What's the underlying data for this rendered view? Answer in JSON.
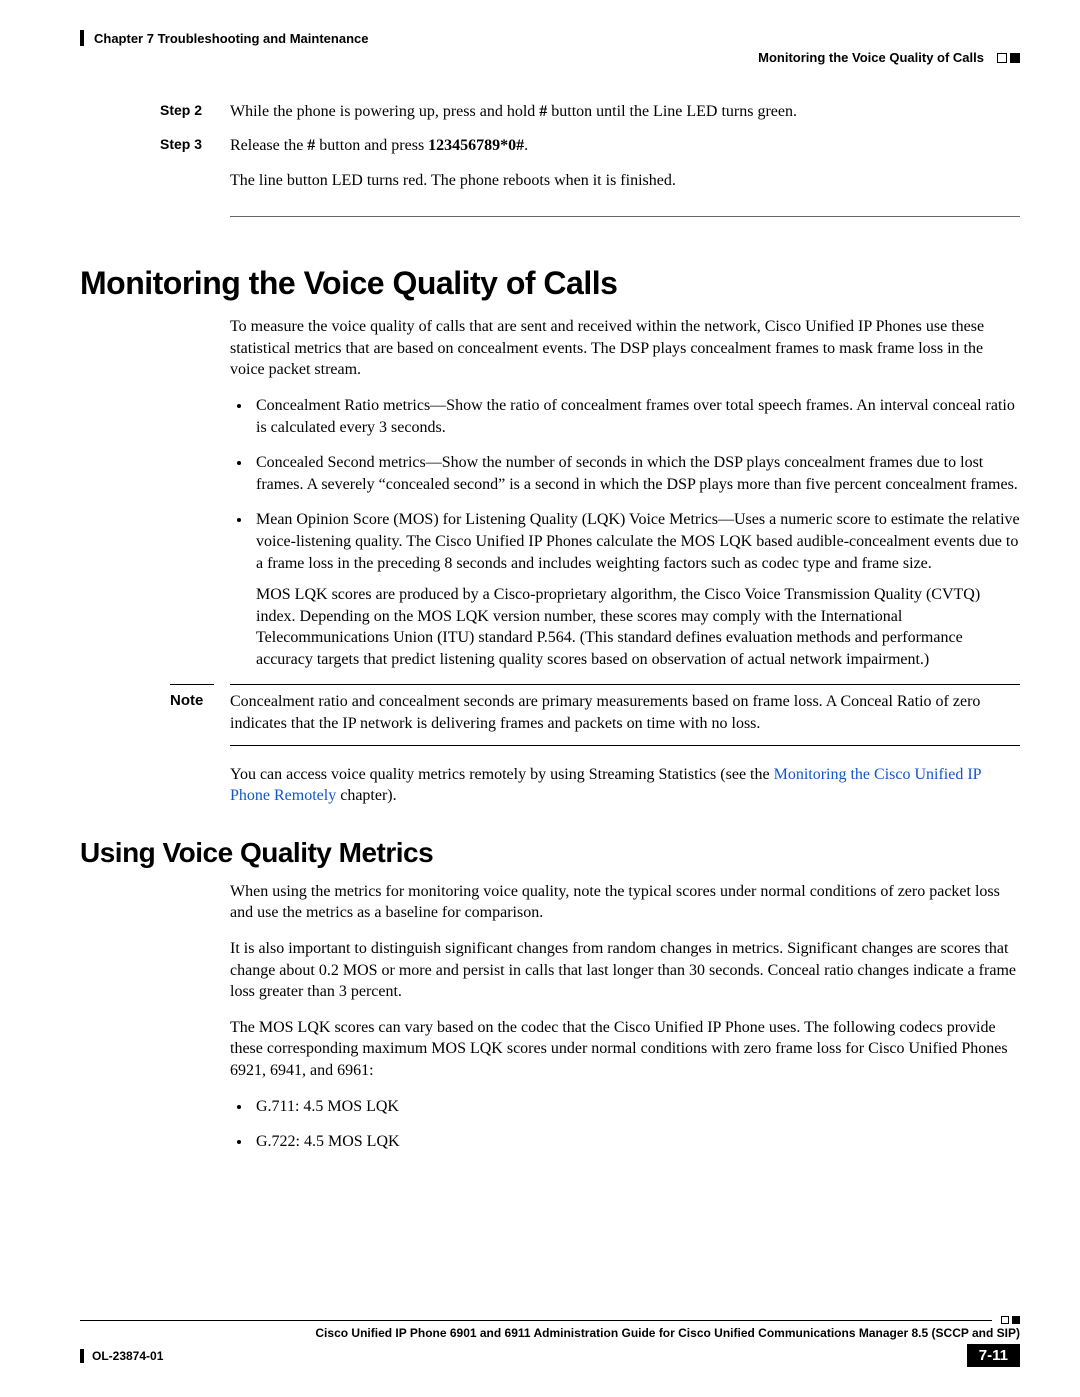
{
  "header": {
    "chapter": "Chapter 7      Troubleshooting and Maintenance",
    "section": "Monitoring the Voice Quality of Calls"
  },
  "steps": {
    "s2": {
      "label": "Step 2",
      "pre": "While the phone is powering up, press and hold ",
      "bold1": "#",
      "post": " button until the Line LED turns green."
    },
    "s3": {
      "label": "Step 3",
      "pre": "Release the ",
      "bold1": "#",
      "mid": " button and press ",
      "bold2": "123456789*0#",
      "post": "."
    },
    "followup": "The line button LED turns red. The phone reboots when it is finished."
  },
  "h1": "Monitoring the Voice Quality of Calls",
  "intro": "To measure the voice quality of calls that are sent and received within the network, Cisco Unified IP Phones use these statistical metrics that are based on concealment events. The DSP plays concealment frames to mask frame loss in the voice packet stream.",
  "bullets": {
    "b1": "Concealment Ratio metrics—Show the ratio of concealment frames over total speech frames. An interval conceal ratio is calculated every 3 seconds.",
    "b2": "Concealed Second metrics—Show the number of seconds in which the DSP plays concealment frames due to lost frames. A severely “concealed second” is a second in which the DSP plays more than five percent concealment frames.",
    "b3": "Mean Opinion Score (MOS) for Listening Quality (LQK) Voice Metrics—Uses a numeric score to estimate the relative voice-listening quality. The Cisco Unified IP Phones calculate the MOS LQK based audible-concealment events due to a frame loss in the preceding 8 seconds and includes weighting factors such as codec type and frame size.",
    "b3p": "MOS LQK scores are produced by a Cisco-proprietary algorithm, the Cisco Voice Transmission Quality (CVTQ) index. Depending on the MOS LQK version number, these scores may comply with the International Telecommunications Union (ITU) standard P.564. (This standard defines evaluation methods and performance accuracy targets that predict listening quality scores based on observation of actual network impairment.)"
  },
  "note": {
    "label": "Note",
    "text": "Concealment ratio and concealment seconds are primary measurements based on frame loss. A Conceal Ratio of zero indicates that the IP network is delivering frames and packets on time with no loss."
  },
  "access": {
    "pre": "You can access voice quality metrics remotely by using Streaming Statistics (see the ",
    "link": "Monitoring the Cisco Unified IP Phone Remotely",
    "post": " chapter)."
  },
  "h2": "Using Voice Quality Metrics",
  "metrics": {
    "p1": "When using the metrics for monitoring voice quality, note the typical scores under normal conditions of zero packet loss and use the metrics as a baseline for comparison.",
    "p2": "It is also important to distinguish significant changes from random changes in metrics. Significant changes are scores that change about 0.2 MOS or more and persist in calls that last longer than 30 seconds. Conceal ratio changes indicate a frame loss greater than 3 percent.",
    "p3": "The MOS LQK scores can vary based on the codec that the Cisco Unified IP Phone uses. The following codecs provide these corresponding maximum MOS LQK scores under normal conditions with zero frame loss for Cisco Unified Phones 6921, 6941, and 6961:",
    "c1": "G.711: 4.5 MOS LQK",
    "c2": "G.722: 4.5 MOS LQK"
  },
  "footer": {
    "title": "Cisco Unified IP Phone 6901 and 6911  Administration Guide for Cisco Unified Communications Manager 8.5 (SCCP and SIP)",
    "docnum": "OL-23874-01",
    "pagenum": "7-11"
  }
}
